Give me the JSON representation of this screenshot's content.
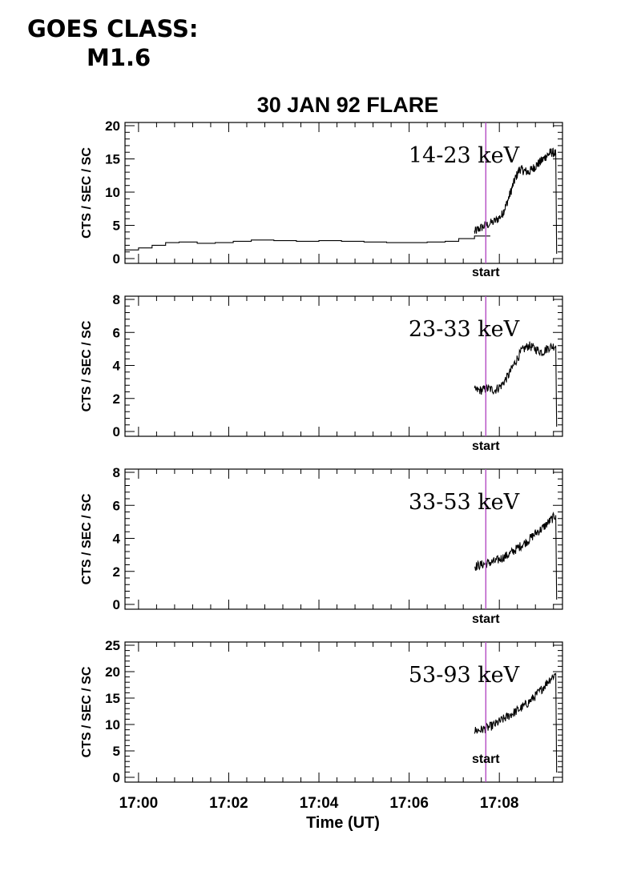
{
  "goes": {
    "line1": "GOES CLASS:",
    "line2": "M1.6"
  },
  "chart_data": {
    "type": "line",
    "title": "30 JAN 92 FLARE",
    "xlabel": "Time (UT)",
    "x_unit": "minutes after 17:00 UT",
    "xlim": [
      -0.3,
      9.4
    ],
    "x_ticks": [
      0,
      2,
      4,
      6,
      8
    ],
    "x_tick_labels": [
      "17:00",
      "17:02",
      "17:04",
      "17:06",
      "17:08"
    ],
    "start_marker": {
      "x": 7.7,
      "label": "start",
      "color": "#b44cc4"
    },
    "line_color": "#000000",
    "panels": [
      {
        "band": "14-23 keV",
        "ylabel": "CTS / SEC / SC",
        "ylim": [
          0,
          20
        ],
        "y_ticks": [
          0,
          5,
          10,
          15,
          20
        ],
        "series": [
          {
            "kind": "step",
            "x": [
              -0.3,
              0.0,
              0.3,
              0.6,
              0.9,
              1.3,
              1.7,
              2.1,
              2.5,
              3.0,
              3.5,
              4.0,
              4.5,
              5.0,
              5.5,
              6.0,
              6.4,
              6.8,
              7.1,
              7.45
            ],
            "y": [
              1.3,
              1.6,
              2.0,
              2.4,
              2.5,
              2.3,
              2.4,
              2.6,
              2.8,
              2.7,
              2.6,
              2.7,
              2.6,
              2.5,
              2.4,
              2.4,
              2.5,
              2.6,
              3.0,
              3.4
            ]
          },
          {
            "kind": "line",
            "x": [
              7.45,
              7.55,
              7.7,
              7.9,
              8.05,
              8.15,
              8.25,
              8.35,
              8.45,
              8.55,
              8.65,
              8.75,
              8.85,
              8.95,
              9.05,
              9.15,
              9.25
            ],
            "y": [
              4.0,
              4.5,
              5.0,
              5.6,
              6.5,
              8.0,
              10.0,
              12.0,
              13.5,
              13.2,
              13.0,
              13.6,
              14.2,
              14.8,
              15.5,
              16.0,
              15.8
            ]
          }
        ]
      },
      {
        "band": "23-33 keV",
        "ylabel": "CTS / SEC / SC",
        "ylim": [
          0,
          8
        ],
        "y_ticks": [
          0,
          2,
          4,
          6,
          8
        ],
        "series": [
          {
            "kind": "line",
            "x": [
              7.45,
              7.6,
              7.75,
              7.9,
              8.05,
              8.2,
              8.35,
              8.5,
              8.65,
              8.8,
              8.95,
              9.1,
              9.25
            ],
            "y": [
              2.5,
              2.5,
              2.6,
              2.5,
              2.8,
              3.4,
              4.2,
              4.9,
              5.2,
              5.0,
              4.8,
              5.1,
              5.2
            ]
          }
        ]
      },
      {
        "band": "33-53 keV",
        "ylabel": "CTS / SEC / SC",
        "ylim": [
          0,
          8
        ],
        "y_ticks": [
          0,
          2,
          4,
          6,
          8
        ],
        "series": [
          {
            "kind": "line",
            "x": [
              7.45,
              7.6,
              7.75,
              7.9,
              8.05,
              8.2,
              8.35,
              8.5,
              8.65,
              8.8,
              8.95,
              9.1,
              9.25
            ],
            "y": [
              2.3,
              2.4,
              2.5,
              2.6,
              2.8,
              3.0,
              3.3,
              3.6,
              3.9,
              4.3,
              4.6,
              5.0,
              5.4
            ]
          }
        ]
      },
      {
        "band": "53-93 keV",
        "ylabel": "CTS / SEC / SC",
        "ylim": [
          0,
          25
        ],
        "y_ticks": [
          0,
          5,
          10,
          15,
          20,
          25
        ],
        "series": [
          {
            "kind": "line",
            "x": [
              7.45,
              7.6,
              7.75,
              7.9,
              8.05,
              8.2,
              8.35,
              8.5,
              8.65,
              8.8,
              8.95,
              9.1,
              9.25
            ],
            "y": [
              8.8,
              9.0,
              9.4,
              10.0,
              10.8,
              11.6,
              12.4,
              13.2,
              14.2,
              15.4,
              16.8,
              18.4,
              19.6
            ]
          }
        ]
      }
    ]
  }
}
